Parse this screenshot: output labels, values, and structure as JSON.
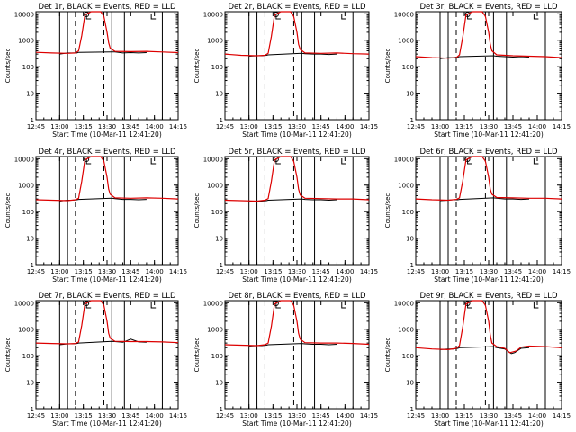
{
  "figure": {
    "background": "#ffffff",
    "foreground": "#000000",
    "colors": {
      "events": "#000000",
      "lld": "#dd0000"
    }
  },
  "chart_data": [
    {
      "type": "line",
      "title": "Det 1r, BLACK = Events, RED = LLD",
      "xlabel": "Start Time (10-Mar-11 12:41:20)",
      "ylabel": "Counts/sec",
      "x_ticks": [
        "12:45",
        "13:00",
        "13:15",
        "13:30",
        "13:45",
        "14:00",
        "14:15"
      ],
      "y_ticks": [
        "1",
        "10",
        "100",
        "1000",
        "10000"
      ],
      "ylim": [
        1,
        12000
      ],
      "yscale": "log",
      "series": [
        {
          "color": "#000000",
          "x": [
            "13:00",
            "13:05",
            "13:08",
            "13:11",
            "13:12",
            "13:33",
            "13:35",
            "13:40",
            "13:45",
            "13:50",
            "13:55"
          ],
          "values": [
            300,
            330,
            330,
            330,
            350,
            360,
            360,
            330,
            340,
            330,
            340
          ]
        },
        {
          "color": "#dd0000",
          "x": [
            "12:45",
            "12:55",
            "13:05",
            "13:10",
            "13:12",
            "13:14",
            "13:16",
            "13:20",
            "13:26",
            "13:28",
            "13:30",
            "13:31",
            "13:32",
            "13:35",
            "13:45",
            "13:55",
            "14:05",
            "14:15"
          ],
          "values": [
            350,
            330,
            320,
            330,
            400,
            1500,
            9000,
            12000,
            12000,
            8000,
            2000,
            800,
            500,
            380,
            370,
            380,
            360,
            340
          ]
        }
      ]
    },
    {
      "type": "line",
      "title": "Det 2r, BLACK = Events, RED = LLD",
      "xlabel": "Start Time (10-Mar-11 12:41:20)",
      "ylabel": "Counts/sec",
      "x_ticks": [
        "12:45",
        "13:00",
        "13:15",
        "13:30",
        "13:45",
        "14:00",
        "14:15"
      ],
      "y_ticks": [
        "1",
        "10",
        "100",
        "1000",
        "10000"
      ],
      "ylim": [
        1,
        12000
      ],
      "yscale": "log",
      "series": [
        {
          "color": "#000000",
          "x": [
            "13:00",
            "13:05",
            "13:08",
            "13:11",
            "13:12",
            "13:33",
            "13:35",
            "13:40",
            "13:45",
            "13:50",
            "13:55"
          ],
          "values": [
            250,
            260,
            260,
            270,
            280,
            320,
            310,
            300,
            300,
            290,
            300
          ]
        },
        {
          "color": "#dd0000",
          "x": [
            "12:45",
            "12:55",
            "13:05",
            "13:10",
            "13:12",
            "13:14",
            "13:16",
            "13:20",
            "13:26",
            "13:28",
            "13:30",
            "13:31",
            "13:32",
            "13:35",
            "13:45",
            "13:55",
            "14:05",
            "14:15"
          ],
          "values": [
            300,
            270,
            260,
            270,
            320,
            1400,
            9000,
            12000,
            12000,
            8000,
            2000,
            700,
            450,
            330,
            320,
            330,
            310,
            300
          ]
        }
      ]
    },
    {
      "type": "line",
      "title": "Det 3r, BLACK = Events, RED = LLD",
      "xlabel": "Start Time (10-Mar-11 12:41:20)",
      "ylabel": "Counts/sec",
      "x_ticks": [
        "12:45",
        "13:00",
        "13:15",
        "13:30",
        "13:45",
        "14:00",
        "14:15"
      ],
      "y_ticks": [
        "1",
        "10",
        "100",
        "1000",
        "10000"
      ],
      "ylim": [
        1,
        12000
      ],
      "yscale": "log",
      "series": [
        {
          "color": "#000000",
          "x": [
            "13:00",
            "13:05",
            "13:08",
            "13:11",
            "13:12",
            "13:33",
            "13:35",
            "13:40",
            "13:45",
            "13:50",
            "13:55"
          ],
          "values": [
            200,
            220,
            220,
            230,
            240,
            260,
            250,
            240,
            230,
            240,
            230
          ]
        },
        {
          "color": "#dd0000",
          "x": [
            "12:45",
            "12:55",
            "13:05",
            "13:10",
            "13:12",
            "13:14",
            "13:16",
            "13:20",
            "13:26",
            "13:28",
            "13:30",
            "13:31",
            "13:32",
            "13:35",
            "13:45",
            "13:55",
            "14:05",
            "14:15"
          ],
          "values": [
            240,
            220,
            210,
            220,
            280,
            1300,
            9000,
            12000,
            12000,
            8000,
            2000,
            700,
            400,
            280,
            260,
            250,
            240,
            220
          ]
        }
      ]
    },
    {
      "type": "line",
      "title": "Det 4r, BLACK = Events, RED = LLD",
      "xlabel": "Start Time (10-Mar-11 12:41:20)",
      "ylabel": "Counts/sec",
      "x_ticks": [
        "12:45",
        "13:00",
        "13:15",
        "13:30",
        "13:45",
        "14:00",
        "14:15"
      ],
      "y_ticks": [
        "1",
        "10",
        "100",
        "1000",
        "10000"
      ],
      "ylim": [
        1,
        12000
      ],
      "yscale": "log",
      "series": [
        {
          "color": "#000000",
          "x": [
            "13:00",
            "13:05",
            "13:08",
            "13:11",
            "13:12",
            "13:33",
            "13:35",
            "13:40",
            "13:45",
            "13:50",
            "13:55"
          ],
          "values": [
            250,
            270,
            270,
            280,
            290,
            320,
            310,
            290,
            290,
            280,
            290
          ]
        },
        {
          "color": "#dd0000",
          "x": [
            "12:45",
            "12:55",
            "13:05",
            "13:10",
            "13:12",
            "13:14",
            "13:16",
            "13:20",
            "13:26",
            "13:28",
            "13:30",
            "13:31",
            "13:32",
            "13:35",
            "13:45",
            "13:55",
            "14:05",
            "14:15"
          ],
          "values": [
            280,
            270,
            260,
            280,
            320,
            1400,
            9000,
            12000,
            12000,
            8000,
            2000,
            700,
            450,
            330,
            320,
            330,
            320,
            300
          ]
        }
      ]
    },
    {
      "type": "line",
      "title": "Det 5r, BLACK = Events, RED = LLD",
      "xlabel": "Start Time (10-Mar-11 12:41:20)",
      "ylabel": "Counts/sec",
      "x_ticks": [
        "12:45",
        "13:00",
        "13:15",
        "13:30",
        "13:45",
        "14:00",
        "14:15"
      ],
      "y_ticks": [
        "1",
        "10",
        "100",
        "1000",
        "10000"
      ],
      "ylim": [
        1,
        12000
      ],
      "yscale": "log",
      "series": [
        {
          "color": "#000000",
          "x": [
            "13:00",
            "13:05",
            "13:08",
            "13:11",
            "13:12",
            "13:33",
            "13:35",
            "13:40",
            "13:45",
            "13:50",
            "13:55"
          ],
          "values": [
            240,
            250,
            250,
            260,
            270,
            300,
            290,
            280,
            280,
            270,
            280
          ]
        },
        {
          "color": "#dd0000",
          "x": [
            "12:45",
            "12:55",
            "13:05",
            "13:10",
            "13:12",
            "13:14",
            "13:16",
            "13:20",
            "13:26",
            "13:28",
            "13:30",
            "13:31",
            "13:32",
            "13:35",
            "13:45",
            "13:55",
            "14:05",
            "14:15"
          ],
          "values": [
            270,
            260,
            250,
            270,
            310,
            1400,
            9000,
            12000,
            12000,
            8000,
            2000,
            700,
            420,
            320,
            310,
            300,
            300,
            280
          ]
        }
      ]
    },
    {
      "type": "line",
      "title": "Det 6r, BLACK = Events, RED = LLD",
      "xlabel": "Start Time (10-Mar-11 12:41:20)",
      "ylabel": "Counts/sec",
      "x_ticks": [
        "12:45",
        "13:00",
        "13:15",
        "13:30",
        "13:45",
        "14:00",
        "14:15"
      ],
      "y_ticks": [
        "1",
        "10",
        "100",
        "1000",
        "10000"
      ],
      "ylim": [
        1,
        12000
      ],
      "yscale": "log",
      "series": [
        {
          "color": "#000000",
          "x": [
            "13:00",
            "13:05",
            "13:08",
            "13:11",
            "13:12",
            "13:33",
            "13:35",
            "13:40",
            "13:45",
            "13:50",
            "13:55"
          ],
          "values": [
            260,
            270,
            280,
            280,
            290,
            330,
            320,
            300,
            300,
            290,
            300
          ]
        },
        {
          "color": "#dd0000",
          "x": [
            "12:45",
            "12:55",
            "13:05",
            "13:10",
            "13:12",
            "13:14",
            "13:16",
            "13:20",
            "13:26",
            "13:28",
            "13:30",
            "13:31",
            "13:32",
            "13:35",
            "13:45",
            "13:55",
            "14:05",
            "14:15"
          ],
          "values": [
            300,
            280,
            270,
            290,
            330,
            1400,
            9000,
            12000,
            12000,
            8000,
            2000,
            700,
            450,
            340,
            330,
            320,
            320,
            300
          ]
        }
      ]
    },
    {
      "type": "line",
      "title": "Det 7r, BLACK = Events, RED = LLD",
      "xlabel": "Start Time (10-Mar-11 12:41:20)",
      "ylabel": "Counts/sec",
      "x_ticks": [
        "12:45",
        "13:00",
        "13:15",
        "13:30",
        "13:45",
        "14:00",
        "14:15"
      ],
      "y_ticks": [
        "1",
        "10",
        "100",
        "1000",
        "10000"
      ],
      "ylim": [
        1,
        12000
      ],
      "yscale": "log",
      "series": [
        {
          "color": "#000000",
          "x": [
            "13:00",
            "13:05",
            "13:08",
            "13:11",
            "13:12",
            "13:33",
            "13:35",
            "13:40",
            "13:45",
            "13:50",
            "13:55"
          ],
          "values": [
            260,
            280,
            280,
            290,
            300,
            350,
            340,
            320,
            420,
            330,
            320
          ]
        },
        {
          "color": "#dd0000",
          "x": [
            "12:45",
            "12:55",
            "13:05",
            "13:10",
            "13:12",
            "13:14",
            "13:16",
            "13:20",
            "13:26",
            "13:28",
            "13:30",
            "13:31",
            "13:32",
            "13:35",
            "13:45",
            "13:55",
            "14:05",
            "14:15"
          ],
          "values": [
            300,
            290,
            280,
            290,
            330,
            1400,
            9000,
            12000,
            12000,
            8000,
            2000,
            700,
            460,
            350,
            340,
            340,
            330,
            310
          ]
        }
      ]
    },
    {
      "type": "line",
      "title": "Det 8r, BLACK = Events, RED = LLD",
      "xlabel": "Start Time (10-Mar-11 12:41:20)",
      "ylabel": "Counts/sec",
      "x_ticks": [
        "12:45",
        "13:00",
        "13:15",
        "13:30",
        "13:45",
        "14:00",
        "14:15"
      ],
      "y_ticks": [
        "1",
        "10",
        "100",
        "1000",
        "10000"
      ],
      "ylim": [
        1,
        12000
      ],
      "yscale": "log",
      "series": [
        {
          "color": "#000000",
          "x": [
            "13:00",
            "13:05",
            "13:08",
            "13:11",
            "13:12",
            "13:33",
            "13:35",
            "13:40",
            "13:45",
            "13:50",
            "13:55"
          ],
          "values": [
            230,
            240,
            240,
            250,
            260,
            290,
            280,
            270,
            270,
            260,
            270
          ]
        },
        {
          "color": "#dd0000",
          "x": [
            "12:45",
            "12:55",
            "13:05",
            "13:10",
            "13:12",
            "13:14",
            "13:16",
            "13:20",
            "13:26",
            "13:28",
            "13:30",
            "13:31",
            "13:32",
            "13:35",
            "13:45",
            "13:55",
            "14:05",
            "14:15"
          ],
          "values": [
            260,
            250,
            240,
            260,
            300,
            1300,
            9000,
            12000,
            12000,
            8000,
            2000,
            700,
            420,
            310,
            300,
            300,
            290,
            270
          ]
        }
      ]
    },
    {
      "type": "line",
      "title": "Det 9r, BLACK = Events, RED = LLD",
      "xlabel": "Start Time (10-Mar-11 12:41:20)",
      "ylabel": "Counts/sec",
      "x_ticks": [
        "12:45",
        "13:00",
        "13:15",
        "13:30",
        "13:45",
        "14:00",
        "14:15"
      ],
      "y_ticks": [
        "1",
        "10",
        "100",
        "1000",
        "10000"
      ],
      "ylim": [
        1,
        12000
      ],
      "yscale": "log",
      "series": [
        {
          "color": "#000000",
          "x": [
            "13:00",
            "13:05",
            "13:08",
            "13:11",
            "13:12",
            "13:33",
            "13:35",
            "13:40",
            "13:44",
            "13:46",
            "13:50",
            "13:55"
          ],
          "values": [
            170,
            180,
            180,
            190,
            200,
            220,
            200,
            180,
            120,
            130,
            190,
            200
          ]
        },
        {
          "color": "#dd0000",
          "x": [
            "12:45",
            "12:55",
            "13:05",
            "13:10",
            "13:12",
            "13:14",
            "13:16",
            "13:20",
            "13:26",
            "13:28",
            "13:30",
            "13:31",
            "13:32",
            "13:35",
            "13:40",
            "13:43",
            "13:45",
            "13:47",
            "13:50",
            "13:55",
            "14:05",
            "14:15"
          ],
          "values": [
            200,
            180,
            170,
            190,
            240,
            1200,
            9000,
            12000,
            12000,
            8000,
            2000,
            600,
            300,
            220,
            190,
            130,
            140,
            150,
            210,
            230,
            220,
            200
          ]
        }
      ]
    }
  ]
}
